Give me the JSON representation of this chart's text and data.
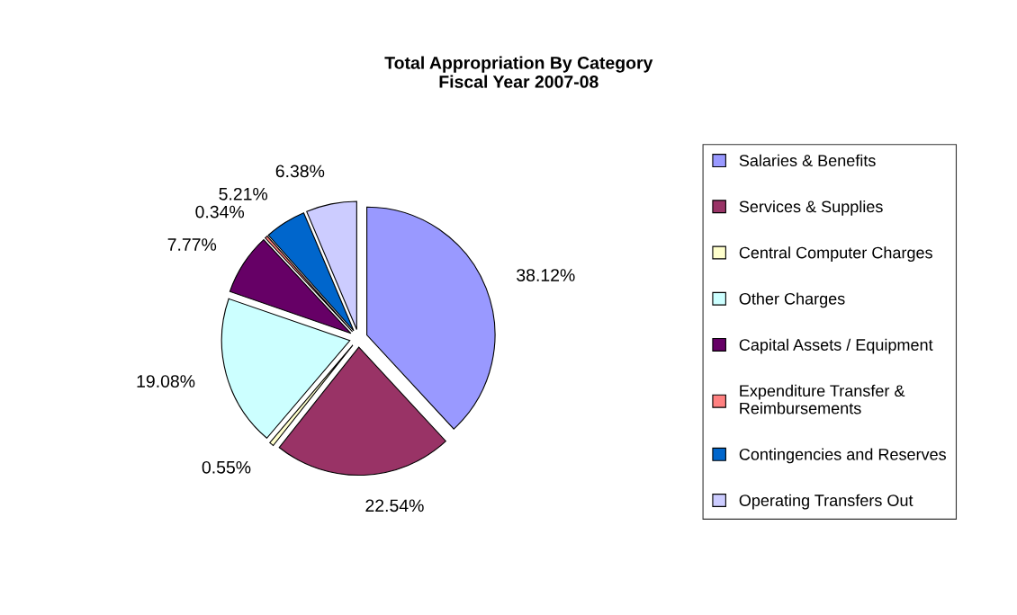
{
  "chart_data": {
    "type": "pie",
    "title": "Total Appropriation By Category\nFiscal Year 2007-08",
    "categories": [
      "Salaries & Benefits",
      "Services & Supplies",
      "Central Computer Charges",
      "Other Charges",
      "Capital Assets / Equipment",
      "Expenditure Transfer &\nReimbursements",
      "Contingencies and Reserves",
      "Operating Transfers Out"
    ],
    "values": [
      38.12,
      22.54,
      0.55,
      19.08,
      7.77,
      0.34,
      5.21,
      6.38
    ],
    "value_labels": [
      "38.12%",
      "22.54%",
      "0.55%",
      "19.08%",
      "7.77%",
      "0.34%",
      "5.21%",
      "6.38%"
    ],
    "colors": [
      "#9999ff",
      "#993366",
      "#ffffcc",
      "#ccffff",
      "#660066",
      "#ff8080",
      "#0066cc",
      "#ccccff"
    ],
    "legend": "right"
  }
}
